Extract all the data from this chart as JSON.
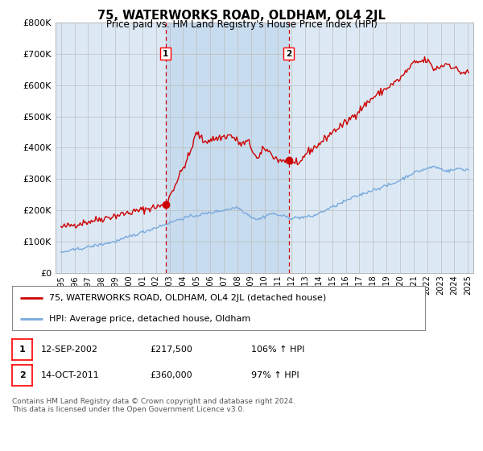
{
  "title": "75, WATERWORKS ROAD, OLDHAM, OL4 2JL",
  "subtitle": "Price paid vs. HM Land Registry's House Price Index (HPI)",
  "legend_line1": "75, WATERWORKS ROAD, OLDHAM, OL4 2JL (detached house)",
  "legend_line2": "HPI: Average price, detached house, Oldham",
  "sale1_date": "12-SEP-2002",
  "sale1_price": "£217,500",
  "sale1_hpi": "106% ↑ HPI",
  "sale1_year": 2002.71,
  "sale1_value": 217500,
  "sale2_date": "14-OCT-2011",
  "sale2_price": "£360,000",
  "sale2_hpi": "97% ↑ HPI",
  "sale2_year": 2011.79,
  "sale2_value": 360000,
  "ylim": [
    0,
    800000
  ],
  "xlim_start": 1994.6,
  "xlim_end": 2025.4,
  "plot_bg_color": "#dce9f5",
  "shade_color": "#c8dcef",
  "red_color": "#cc0000",
  "blue_color": "#7aaadd",
  "grid_color": "#bbbbbb",
  "footnote": "Contains HM Land Registry data © Crown copyright and database right 2024.\nThis data is licensed under the Open Government Licence v3.0."
}
